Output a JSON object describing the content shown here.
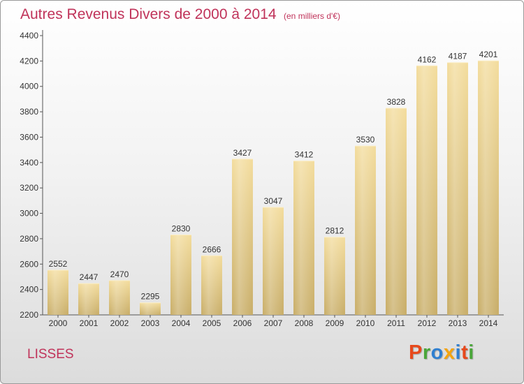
{
  "chart_data": {
    "type": "bar",
    "title": "Autres Revenus Divers de 2000 à 2014",
    "subtitle": "(en milliers d'€)",
    "categories": [
      "2000",
      "2001",
      "2002",
      "2003",
      "2004",
      "2005",
      "2006",
      "2007",
      "2008",
      "2009",
      "2010",
      "2011",
      "2012",
      "2013",
      "2014"
    ],
    "values": [
      2552,
      2447,
      2470,
      2295,
      2830,
      2666,
      3427,
      3047,
      3412,
      2812,
      3530,
      3828,
      4162,
      4187,
      4201
    ],
    "ylim": [
      2200,
      4400
    ],
    "yticks": [
      2200,
      2400,
      2600,
      2800,
      3000,
      3200,
      3400,
      3600,
      3800,
      4000,
      4200,
      4400
    ],
    "grid": false,
    "bar_color_light": "#f3dc9c",
    "bar_color_dark": "#c8ad67",
    "accent_color": "#c0335a"
  },
  "footer": {
    "city": "LISSES",
    "logo": "Proxiti"
  },
  "logo_colors": [
    "#e7491c",
    "#4aa63a",
    "#2f7fd0",
    "#f4a40f",
    "#2f7fd0",
    "#e7491c",
    "#4aa63a"
  ]
}
